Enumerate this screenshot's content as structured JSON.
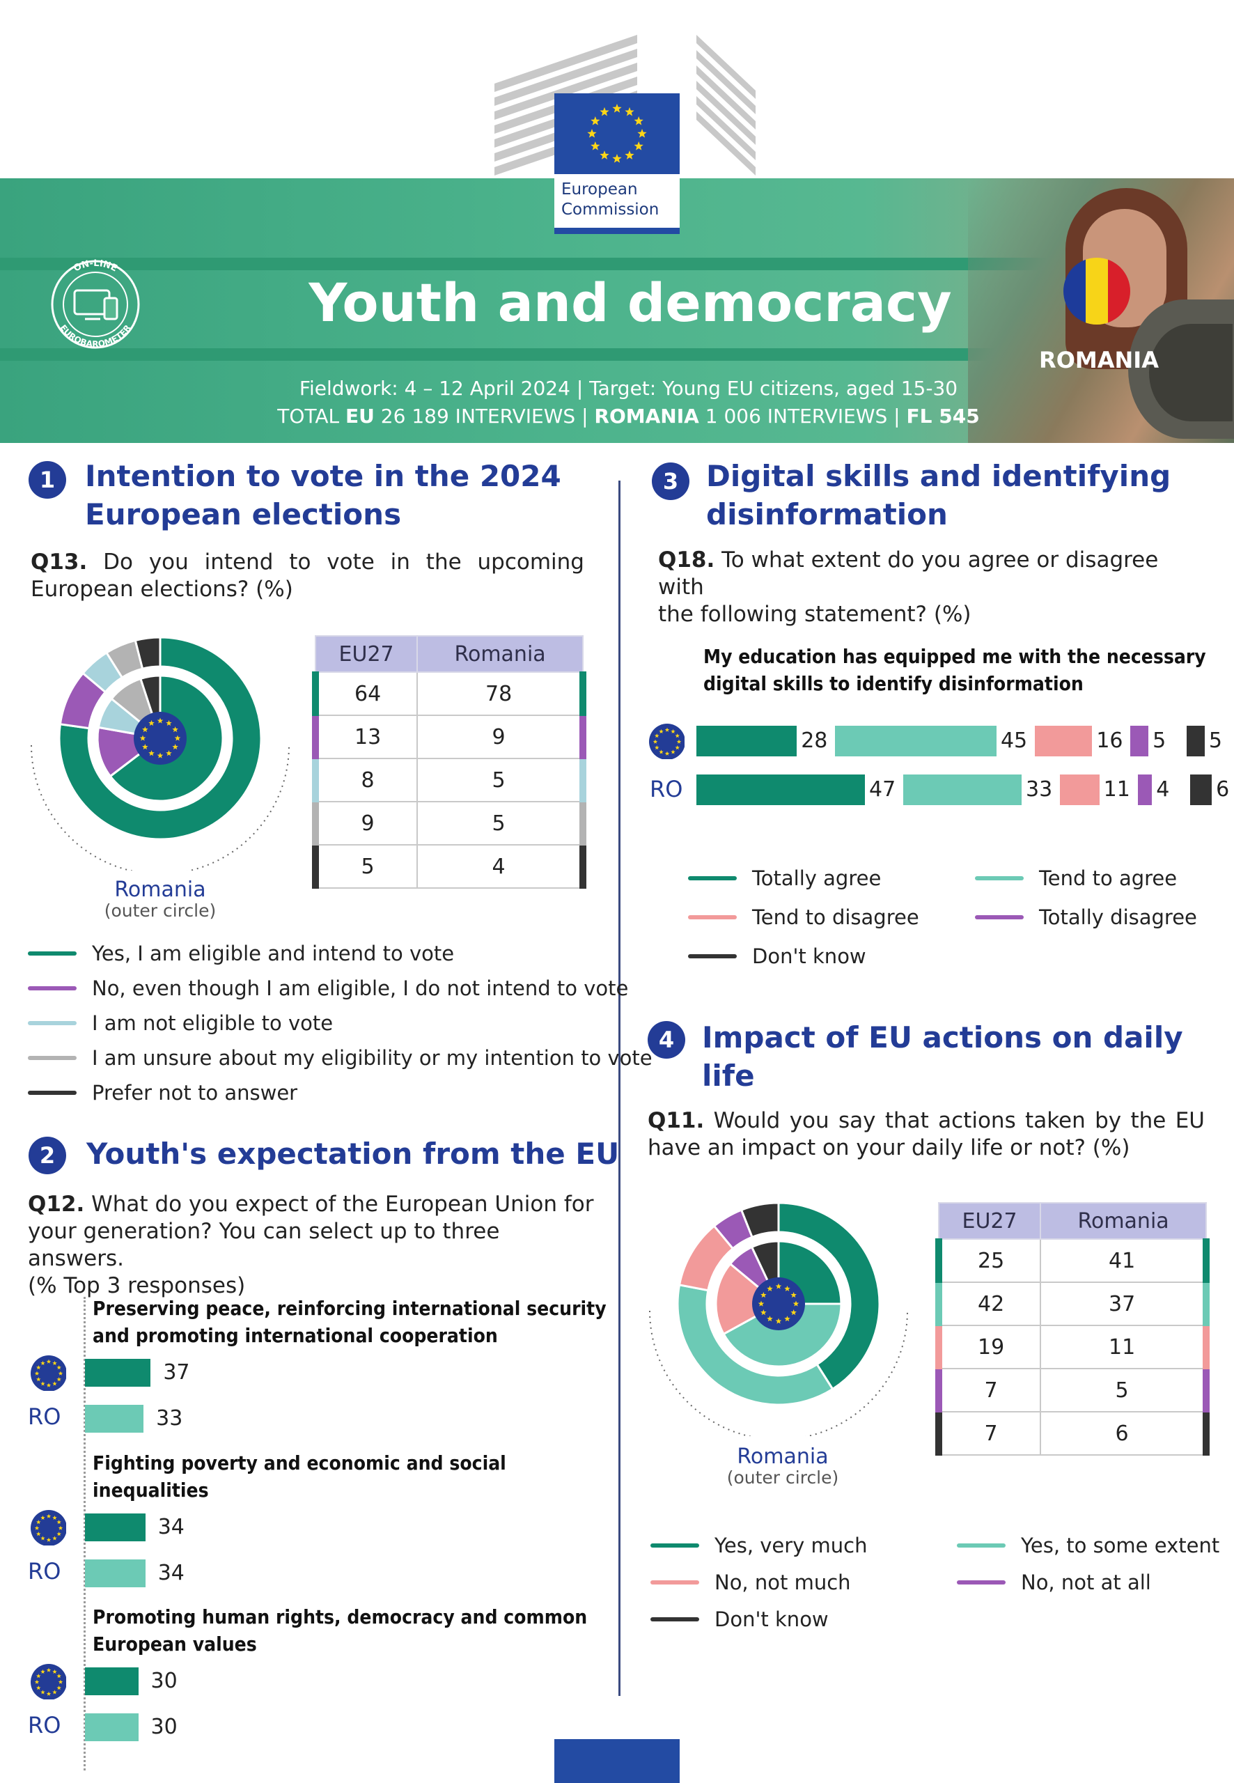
{
  "header": {
    "ec_line1": "European",
    "ec_line2": "Commission",
    "badge_top": "ON-LINE",
    "badge_bottom": "EUROBAROMETER",
    "title": "Youth and democracy",
    "country": "ROMANIA",
    "fieldwork_line1": "Fieldwork: 4 – 12 April 2024 | Target: Young EU citizens, aged 15-30",
    "fieldwork_total": "TOTAL ",
    "fieldwork_eu": "EU",
    "fieldwork_eu_count": " 26 189 INTERVIEWS | ",
    "fieldwork_ro": "ROMANIA",
    "fieldwork_ro_count": " 1 006 INTERVIEWS | ",
    "fieldwork_fl": "FL 545"
  },
  "colors": {
    "dark_green": "#0f8a6e",
    "teal": "#6ccab5",
    "pink": "#f29a9a",
    "purple": "#9b59b6",
    "light_blue": "#a8d3dc",
    "grey": "#b3b3b3",
    "black": "#333333",
    "eu_blue": "#233c96"
  },
  "sections": {
    "s1": {
      "num": "1",
      "title_line1": "Intention to vote in the 2024",
      "title_line2": "European elections",
      "q_num": "Q13.",
      "q_text_line1": " Do you intend to vote in the upcoming",
      "q_text_line2": "European elections? (%)",
      "donut_label": "Romania",
      "donut_sub": "(outer circle)",
      "table_headers": [
        "EU27",
        "Romania"
      ],
      "rows": [
        {
          "eu": 64,
          "ro": 78,
          "color": "#0f8a6e"
        },
        {
          "eu": 13,
          "ro": 9,
          "color": "#9b59b6"
        },
        {
          "eu": 8,
          "ro": 5,
          "color": "#a8d3dc"
        },
        {
          "eu": 9,
          "ro": 5,
          "color": "#b3b3b3"
        },
        {
          "eu": 5,
          "ro": 4,
          "color": "#333333"
        }
      ],
      "legend": [
        {
          "label": "Yes, I am eligible and intend to vote",
          "color": "#0f8a6e"
        },
        {
          "label": "No, even though I am eligible, I do not intend to vote",
          "color": "#9b59b6"
        },
        {
          "label": "I am not eligible to vote",
          "color": "#a8d3dc"
        },
        {
          "label": "I am unsure about my eligibility or my intention to vote",
          "color": "#b3b3b3"
        },
        {
          "label": "Prefer not to answer",
          "color": "#333333"
        }
      ]
    },
    "s2": {
      "num": "2",
      "title": "Youth's expectation from the EU",
      "q_num": "Q12.",
      "q_text_line1": " What do you expect of the European Union for",
      "q_text_line2": "your generation? You can select up to three answers.",
      "q_text_line3": "(% Top 3 responses)",
      "ro_label": "RO",
      "items": [
        {
          "title_line1": "Preserving peace, reinforcing international security",
          "title_line2": "and promoting international cooperation",
          "eu": 37,
          "ro": 33
        },
        {
          "title_line1": "Fighting poverty and economic and social",
          "title_line2": "inequalities",
          "eu": 34,
          "ro": 34
        },
        {
          "title_line1": "Promoting human rights, democracy and common",
          "title_line2": "European values",
          "eu": 30,
          "ro": 30
        }
      ]
    },
    "s3": {
      "num": "3",
      "title_line1": "Digital skills and identifying",
      "title_line2": "disinformation",
      "q_num": "Q18.",
      "q_text_line1": " To what extent do you agree or disagree with",
      "q_text_line2": "the following statement? (%)",
      "chart_title_line1": "My education has equipped me with the necessary",
      "chart_title_line2": "digital skills to identify disinformation",
      "ro_label": "RO",
      "legend": [
        {
          "label": "Totally agree",
          "color": "#0f8a6e"
        },
        {
          "label": "Tend to agree",
          "color": "#6ccab5"
        },
        {
          "label": "Tend to disagree",
          "color": "#f29a9a"
        },
        {
          "label": "Totally disagree",
          "color": "#9b59b6"
        },
        {
          "label": "Don't know",
          "color": "#333333"
        }
      ]
    },
    "s4": {
      "num": "4",
      "title_line1": "Impact of EU actions on daily",
      "title_line2": "life",
      "q_num": "Q11.",
      "q_text_line1": " Would you say that actions taken by the EU",
      "q_text_line2": "have an impact on your daily life or not? (%)",
      "donut_label": "Romania",
      "donut_sub": "(outer circle)",
      "table_headers": [
        "EU27",
        "Romania"
      ],
      "rows": [
        {
          "eu": 25,
          "ro": 41,
          "color": "#0f8a6e"
        },
        {
          "eu": 42,
          "ro": 37,
          "color": "#6ccab5"
        },
        {
          "eu": 19,
          "ro": 11,
          "color": "#f29a9a"
        },
        {
          "eu": 7,
          "ro": 5,
          "color": "#9b59b6"
        },
        {
          "eu": 7,
          "ro": 6,
          "color": "#333333"
        }
      ],
      "legend": [
        {
          "label": "Yes, very much",
          "color": "#0f8a6e"
        },
        {
          "label": "Yes, to some extent",
          "color": "#6ccab5"
        },
        {
          "label": "No, not much",
          "color": "#f29a9a"
        },
        {
          "label": "No, not at all",
          "color": "#9b59b6"
        },
        {
          "label": "Don't know",
          "color": "#333333"
        }
      ]
    }
  },
  "chart_data": [
    {
      "type": "pie",
      "categories": [
        "Yes, I am eligible and intend to vote",
        "No, even though I am eligible, I do not intend to vote",
        "I am not eligible to vote",
        "I am unsure about my eligibility or my intention to vote",
        "Prefer not to answer"
      ],
      "series": [
        {
          "name": "EU27",
          "values": [
            64,
            13,
            8,
            9,
            5
          ]
        },
        {
          "name": "Romania",
          "values": [
            78,
            9,
            5,
            5,
            4
          ]
        }
      ]
    },
    {
      "type": "bar",
      "categories": [
        "Preserving peace, reinforcing international security and promoting international cooperation",
        "Fighting poverty and economic and social inequalities",
        "Promoting human rights, democracy and common European values"
      ],
      "series": [
        {
          "name": "EU",
          "values": [
            37,
            34,
            30
          ]
        },
        {
          "name": "RO",
          "values": [
            33,
            34,
            30
          ]
        }
      ]
    },
    {
      "type": "bar",
      "title": "My education has equipped me with the necessary digital skills to identify disinformation",
      "categories": [
        "EU",
        "RO"
      ],
      "series": [
        {
          "name": "Totally agree",
          "values": [
            28,
            47
          ]
        },
        {
          "name": "Tend to agree",
          "values": [
            45,
            33
          ]
        },
        {
          "name": "Tend to disagree",
          "values": [
            16,
            11
          ]
        },
        {
          "name": "Totally disagree",
          "values": [
            5,
            4
          ]
        },
        {
          "name": "Don't know",
          "values": [
            5,
            6
          ]
        }
      ]
    },
    {
      "type": "pie",
      "categories": [
        "Yes, very much",
        "Yes, to some extent",
        "No, not much",
        "No, not at all",
        "Don't know"
      ],
      "series": [
        {
          "name": "EU27",
          "values": [
            25,
            42,
            19,
            7,
            7
          ]
        },
        {
          "name": "Romania",
          "values": [
            41,
            37,
            11,
            5,
            6
          ]
        }
      ]
    }
  ]
}
